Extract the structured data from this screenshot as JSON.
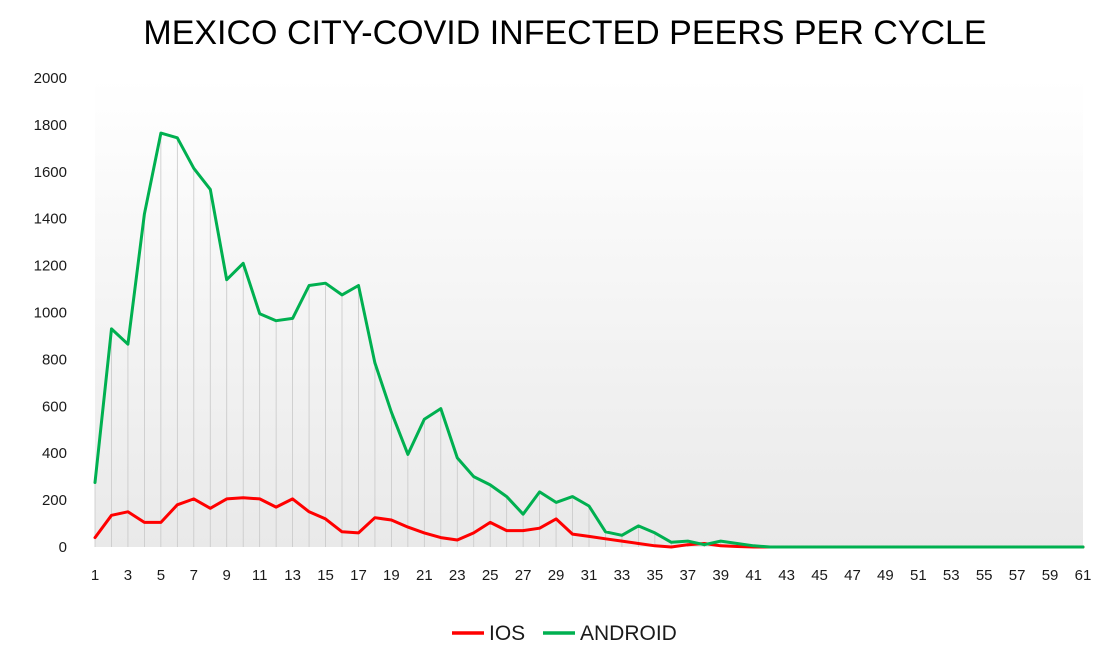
{
  "chart_data": {
    "type": "line",
    "title": "MEXICO CITY-COVID INFECTED PEERS PER CYCLE",
    "xlabel": "",
    "ylabel": "",
    "x": [
      1,
      2,
      3,
      4,
      5,
      6,
      7,
      8,
      9,
      10,
      11,
      12,
      13,
      14,
      15,
      16,
      17,
      18,
      19,
      20,
      21,
      22,
      23,
      24,
      25,
      26,
      27,
      28,
      29,
      30,
      31,
      32,
      33,
      34,
      35,
      36,
      37,
      38,
      39,
      40,
      41,
      42,
      43,
      44,
      45,
      46,
      47,
      48,
      49,
      50,
      51,
      52,
      53,
      54,
      55,
      56,
      57,
      58,
      59,
      60,
      61
    ],
    "x_tick_labels": [
      "1",
      "3",
      "5",
      "7",
      "9",
      "11",
      "13",
      "15",
      "17",
      "19",
      "21",
      "23",
      "25",
      "27",
      "29",
      "31",
      "33",
      "35",
      "37",
      "39",
      "41",
      "43",
      "45",
      "47",
      "49",
      "51",
      "53",
      "55",
      "57",
      "59",
      "61"
    ],
    "ylim": [
      0,
      2000
    ],
    "y_ticks": [
      0,
      200,
      400,
      600,
      800,
      1000,
      1200,
      1400,
      1600,
      1800,
      2000
    ],
    "grid": false,
    "drop_lines": true,
    "legend_position": "bottom",
    "series": [
      {
        "name": "IOS",
        "color": "#ff0000",
        "values": [
          40,
          135,
          150,
          105,
          105,
          180,
          205,
          165,
          205,
          210,
          205,
          170,
          205,
          150,
          120,
          65,
          60,
          125,
          115,
          85,
          60,
          40,
          30,
          60,
          105,
          70,
          70,
          80,
          120,
          55,
          45,
          35,
          25,
          15,
          5,
          0,
          10,
          15,
          5,
          2,
          0,
          0,
          0,
          0,
          0,
          0,
          0,
          0,
          0,
          0,
          0,
          0,
          0,
          0,
          0,
          0,
          0,
          0,
          0,
          0,
          0
        ]
      },
      {
        "name": "ANDROID",
        "color": "#00b050",
        "values": [
          275,
          930,
          865,
          1420,
          1765,
          1745,
          1615,
          1525,
          1140,
          1210,
          995,
          965,
          975,
          1115,
          1125,
          1075,
          1115,
          785,
          575,
          395,
          545,
          590,
          380,
          300,
          265,
          215,
          140,
          235,
          190,
          215,
          175,
          65,
          50,
          90,
          60,
          20,
          25,
          10,
          25,
          15,
          5,
          0,
          0,
          0,
          0,
          0,
          0,
          0,
          0,
          0,
          0,
          0,
          0,
          0,
          0,
          0,
          0,
          0,
          0,
          0,
          0
        ]
      }
    ]
  }
}
